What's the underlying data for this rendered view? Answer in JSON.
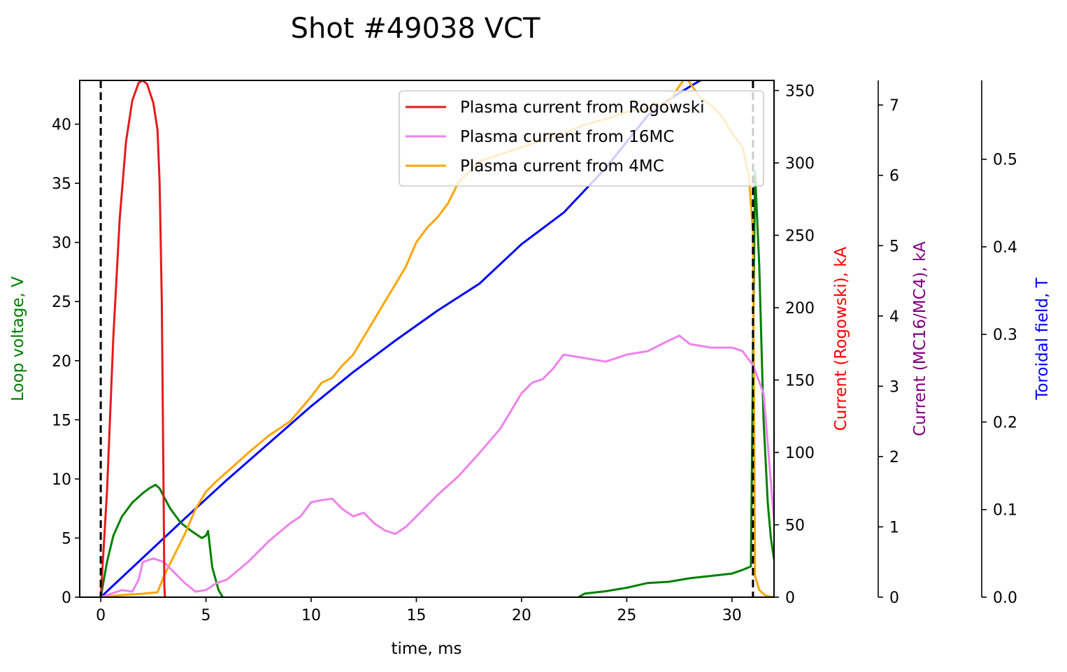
{
  "chart_data": {
    "type": "line",
    "title": "Shot #49038 VCT",
    "xlabel": "time, ms",
    "xlim": [
      -1,
      32
    ],
    "xticks": [
      0,
      5,
      10,
      15,
      20,
      25,
      30
    ],
    "grid": false,
    "legend_position": "top-right",
    "axes": [
      {
        "id": "voltage",
        "label": "Loop voltage, V",
        "color": "#008000",
        "side": "left",
        "ylim": [
          0,
          43.7
        ],
        "ticks": [
          0,
          5,
          10,
          15,
          20,
          25,
          30,
          35,
          40
        ]
      },
      {
        "id": "rogowski",
        "label": "Current (Rogowski), kA",
        "color": "#ff0000",
        "side": "right",
        "ylim": [
          0,
          357
        ],
        "ticks": [
          0,
          50,
          100,
          150,
          200,
          250,
          300,
          350
        ]
      },
      {
        "id": "mc",
        "label": "Current (MC16/MC4), kA",
        "color": "#800080",
        "side": "right",
        "ylim": [
          0,
          7.35
        ],
        "ticks": [
          0,
          1,
          2,
          3,
          4,
          5,
          6,
          7
        ]
      },
      {
        "id": "field",
        "label": "Toroidal field, T",
        "color": "#0000ff",
        "side": "right",
        "ylim": [
          0,
          0.59
        ],
        "ticks": [
          0.0,
          0.1,
          0.2,
          0.3,
          0.4,
          0.5
        ]
      }
    ],
    "vlines": [
      0,
      31
    ],
    "series": [
      {
        "name": "Plasma current from Rogowski",
        "axis": "voltage",
        "color": "#e41a1c",
        "legend": true,
        "x": [
          0,
          0.3,
          0.6,
          0.9,
          1.2,
          1.5,
          1.8,
          2.0,
          2.2,
          2.5,
          2.7,
          2.8,
          2.9,
          3.0,
          3.02,
          3.05
        ],
        "y": [
          0,
          9,
          22,
          32,
          38.5,
          42,
          43.5,
          43.7,
          43.4,
          41.8,
          39.5,
          35,
          25,
          6,
          1,
          0
        ]
      },
      {
        "name": "Plasma current from 16MC",
        "axis": "mc",
        "color": "#ee82ee",
        "legend": true,
        "x": [
          0,
          0.5,
          1,
          1.5,
          1.8,
          2.0,
          2.5,
          3.0,
          3.5,
          4.0,
          4.5,
          5.0,
          5.5,
          6,
          7,
          8,
          9,
          9.5,
          10,
          10.5,
          11,
          11.5,
          12,
          12.5,
          13,
          13.5,
          14,
          14.5,
          15,
          16,
          17,
          18,
          19,
          20,
          20.5,
          21,
          21.5,
          22,
          23,
          24,
          25,
          26,
          27,
          27.5,
          28,
          29,
          30,
          30.5,
          31,
          31.5,
          32
        ],
        "y": [
          0,
          0.05,
          0.1,
          0.08,
          0.25,
          0.5,
          0.55,
          0.5,
          0.35,
          0.2,
          0.08,
          0.1,
          0.2,
          0.25,
          0.5,
          0.8,
          1.05,
          1.15,
          1.35,
          1.38,
          1.4,
          1.25,
          1.15,
          1.2,
          1.05,
          0.95,
          0.9,
          1.0,
          1.15,
          1.45,
          1.72,
          2.05,
          2.4,
          2.9,
          3.05,
          3.1,
          3.25,
          3.45,
          3.4,
          3.35,
          3.45,
          3.5,
          3.65,
          3.72,
          3.6,
          3.55,
          3.55,
          3.5,
          3.3,
          2.9,
          1.1
        ]
      },
      {
        "name": "Plasma current from 4MC",
        "axis": "mc",
        "color": "#ffa500",
        "legend": true,
        "x": [
          0,
          1,
          2,
          2.7,
          3.0,
          3.5,
          4,
          4.5,
          5,
          5.5,
          6,
          7,
          8,
          9,
          10,
          10.5,
          11,
          11.5,
          12,
          12.5,
          13,
          13.5,
          14,
          14.5,
          15,
          15.5,
          16,
          16.5,
          17,
          17.5,
          18,
          19,
          20,
          21,
          22,
          23,
          24,
          25,
          26,
          27,
          27.8,
          28.5,
          29,
          29.5,
          30,
          30.5,
          30.8,
          31.0,
          31.1,
          31.3,
          31.6,
          32
        ],
        "y": [
          0,
          0.03,
          0.05,
          0.07,
          0.3,
          0.6,
          0.9,
          1.25,
          1.5,
          1.65,
          1.78,
          2.05,
          2.3,
          2.5,
          2.85,
          3.05,
          3.12,
          3.3,
          3.45,
          3.7,
          3.95,
          4.2,
          4.45,
          4.7,
          5.05,
          5.25,
          5.4,
          5.6,
          5.9,
          6.05,
          6.2,
          6.3,
          6.4,
          6.5,
          6.6,
          6.72,
          6.8,
          6.9,
          6.95,
          7.05,
          7.4,
          7.1,
          7.0,
          6.85,
          6.6,
          6.4,
          6.0,
          5.2,
          0.3,
          0.1,
          0.02,
          0.0
        ]
      },
      {
        "name": "",
        "axis": "voltage",
        "color": "#008000",
        "legend": false,
        "segments": [
          {
            "x": [
              0,
              0.3,
              0.6,
              1.0,
              1.5,
              2.0,
              2.3,
              2.6,
              2.8,
              3.0,
              3.3,
              3.8,
              4.3,
              4.8,
              5.0,
              5.1,
              5.3,
              5.6,
              5.8
            ],
            "y": [
              0,
              3,
              5.2,
              6.8,
              8.0,
              8.8,
              9.2,
              9.5,
              9.2,
              8.5,
              7.5,
              6.3,
              5.6,
              5.0,
              5.2,
              5.6,
              2.5,
              0.6,
              0
            ]
          },
          {
            "x": [
              22.7,
              23,
              24,
              25,
              26,
              27,
              28,
              29,
              30,
              30.5,
              30.9,
              31.0,
              31.1,
              31.3,
              31.5,
              31.7,
              31.85,
              32
            ],
            "y": [
              0,
              0.3,
              0.5,
              0.8,
              1.2,
              1.3,
              1.6,
              1.8,
              2.0,
              2.3,
              2.6,
              20,
              36,
              28,
              15,
              8,
              5,
              3.2
            ]
          }
        ]
      },
      {
        "name": "",
        "axis": "field",
        "color": "#0000ff",
        "legend": false,
        "x": [
          0,
          2,
          4,
          6,
          8,
          10,
          12,
          14,
          16,
          18,
          20,
          22,
          24,
          26,
          27,
          28,
          28.5,
          29,
          30,
          31,
          32
        ],
        "y": [
          0,
          0.045,
          0.09,
          0.134,
          0.176,
          0.218,
          0.257,
          0.293,
          0.327,
          0.358,
          0.403,
          0.439,
          0.49,
          0.55,
          0.568,
          0.583,
          0.59,
          0.593,
          0.594,
          0.593,
          0.593
        ]
      }
    ]
  }
}
